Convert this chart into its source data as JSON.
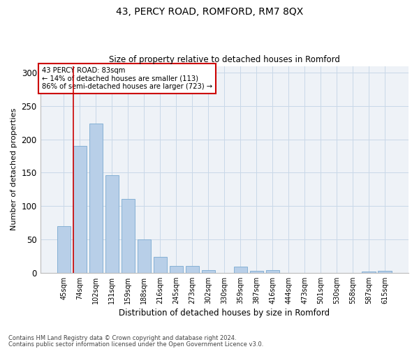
{
  "title_line1": "43, PERCY ROAD, ROMFORD, RM7 8QX",
  "title_line2": "Size of property relative to detached houses in Romford",
  "xlabel": "Distribution of detached houses by size in Romford",
  "ylabel": "Number of detached properties",
  "footer_line1": "Contains HM Land Registry data © Crown copyright and database right 2024.",
  "footer_line2": "Contains public sector information licensed under the Open Government Licence v3.0.",
  "categories": [
    "45sqm",
    "74sqm",
    "102sqm",
    "131sqm",
    "159sqm",
    "188sqm",
    "216sqm",
    "245sqm",
    "273sqm",
    "302sqm",
    "330sqm",
    "359sqm",
    "387sqm",
    "416sqm",
    "444sqm",
    "473sqm",
    "501sqm",
    "530sqm",
    "558sqm",
    "587sqm",
    "615sqm"
  ],
  "values": [
    70,
    190,
    224,
    146,
    111,
    50,
    24,
    10,
    10,
    4,
    0,
    9,
    3,
    4,
    0,
    0,
    0,
    0,
    0,
    2,
    3
  ],
  "bar_color": "#b8cfe8",
  "bar_edge_color": "#7aaad0",
  "property_line_x": 0.575,
  "property_line_color": "#cc0000",
  "annotation_title": "43 PERCY ROAD: 83sqm",
  "annotation_line1": "← 14% of detached houses are smaller (113)",
  "annotation_line2": "86% of semi-detached houses are larger (723) →",
  "annotation_box_color": "#cc0000",
  "ylim": [
    0,
    310
  ],
  "yticks": [
    0,
    50,
    100,
    150,
    200,
    250,
    300
  ],
  "grid_color": "#c8d8e8",
  "bg_color": "#eef2f7"
}
